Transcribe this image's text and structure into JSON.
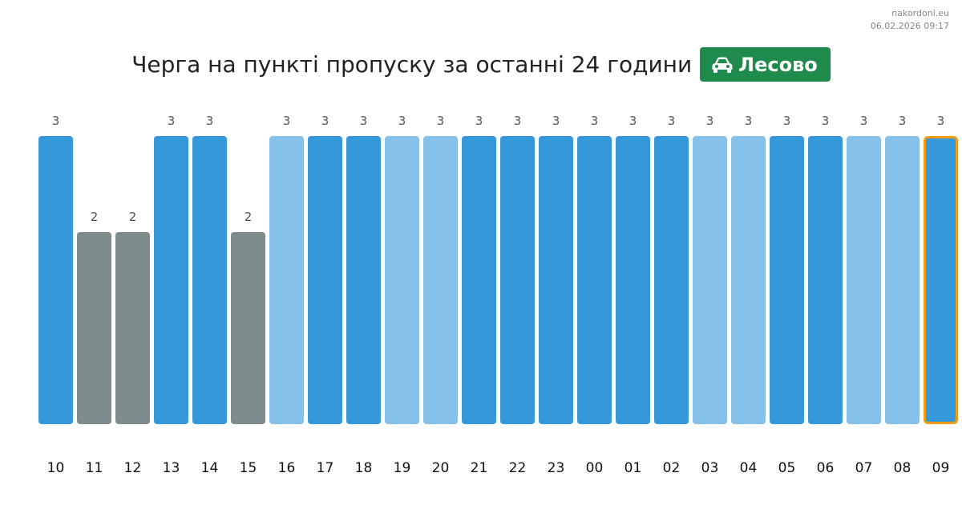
{
  "source": {
    "site": "nakordoni.eu",
    "timestamp": "06.02.2026 09:17"
  },
  "header": {
    "title": "Черга на пункті пропуску за останні 24 години",
    "checkpoint": "Лесово",
    "badge_icon": "car-icon",
    "badge_color": "#1e8a4c"
  },
  "colors": {
    "blue": "#3498db",
    "light_blue": "#85c1e9",
    "gray": "#7f8c8d",
    "highlight_border": "#f39c12"
  },
  "chart_data": {
    "type": "bar",
    "categories": [
      "10",
      "11",
      "12",
      "13",
      "14",
      "15",
      "16",
      "17",
      "18",
      "19",
      "20",
      "21",
      "22",
      "23",
      "00",
      "01",
      "02",
      "03",
      "04",
      "05",
      "06",
      "07",
      "08",
      "09"
    ],
    "values": [
      3,
      2,
      2,
      3,
      3,
      2,
      3,
      3,
      3,
      3,
      3,
      3,
      3,
      3,
      3,
      3,
      3,
      3,
      3,
      3,
      3,
      3,
      3,
      3
    ],
    "bar_colors": [
      "blue",
      "gray",
      "gray",
      "blue",
      "blue",
      "gray",
      "light_blue",
      "blue",
      "blue",
      "light_blue",
      "light_blue",
      "blue",
      "blue",
      "blue",
      "blue",
      "blue",
      "blue",
      "light_blue",
      "light_blue",
      "blue",
      "blue",
      "light_blue",
      "light_blue",
      "blue"
    ],
    "highlighted_category": "09",
    "ylim": [
      0,
      3
    ],
    "data_labels": true,
    "grid": false,
    "legend": "none"
  }
}
